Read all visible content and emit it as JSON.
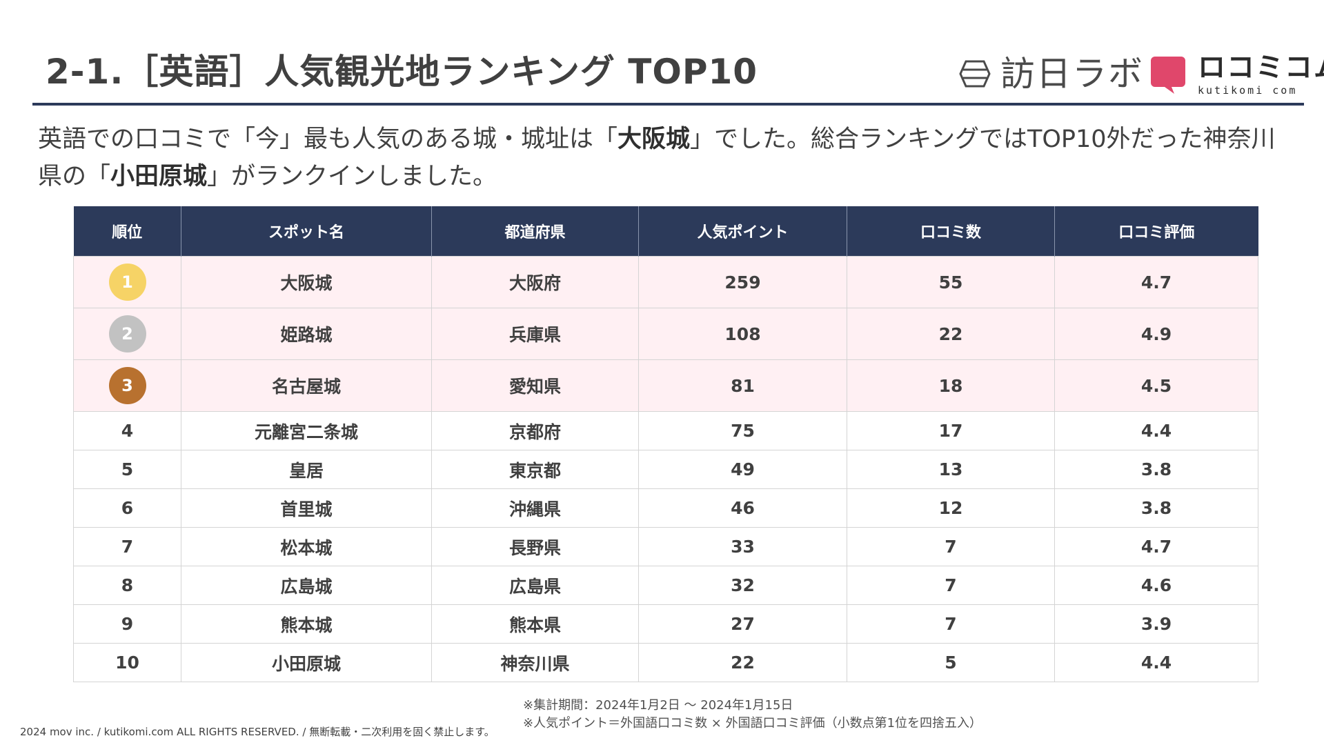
{
  "title": "2-1.［英語］人気観光地ランキング TOP10",
  "logos": {
    "houjitsu": "訪日ラボ",
    "kutikomi_jp": "ロコミコム",
    "kutikomi_en": "kutikomi com",
    "kutikomi_color": "#e0476b"
  },
  "lead": {
    "part1": "英語での口コミで「今」最も人気のある城・城址は「",
    "highlight1": "大阪城",
    "part2": "」でした。総合ランキングではTOP10外だった神奈川県の「",
    "highlight2": "小田原城",
    "part3": "」がランクインしました。"
  },
  "table": {
    "headers": [
      "順位",
      "スポット名",
      "都道府県",
      "人気ポイント",
      "口コミ数",
      "口コミ評価"
    ],
    "medal_colors": [
      "#f6d366",
      "#c2c2c2",
      "#b8712f"
    ],
    "rows": [
      {
        "rank": "1",
        "spot": "大阪城",
        "pref": "大阪府",
        "points": "259",
        "reviews": "55",
        "rating": "4.7"
      },
      {
        "rank": "2",
        "spot": "姫路城",
        "pref": "兵庫県",
        "points": "108",
        "reviews": "22",
        "rating": "4.9"
      },
      {
        "rank": "3",
        "spot": "名古屋城",
        "pref": "愛知県",
        "points": "81",
        "reviews": "18",
        "rating": "4.5"
      },
      {
        "rank": "4",
        "spot": "元離宮二条城",
        "pref": "京都府",
        "points": "75",
        "reviews": "17",
        "rating": "4.4"
      },
      {
        "rank": "5",
        "spot": "皇居",
        "pref": "東京都",
        "points": "49",
        "reviews": "13",
        "rating": "3.8"
      },
      {
        "rank": "6",
        "spot": "首里城",
        "pref": "沖縄県",
        "points": "46",
        "reviews": "12",
        "rating": "3.8"
      },
      {
        "rank": "7",
        "spot": "松本城",
        "pref": "長野県",
        "points": "33",
        "reviews": "7",
        "rating": "4.7"
      },
      {
        "rank": "8",
        "spot": "広島城",
        "pref": "広島県",
        "points": "32",
        "reviews": "7",
        "rating": "4.6"
      },
      {
        "rank": "9",
        "spot": "熊本城",
        "pref": "熊本県",
        "points": "27",
        "reviews": "7",
        "rating": "3.9"
      },
      {
        "rank": "10",
        "spot": "小田原城",
        "pref": "神奈川県",
        "points": "22",
        "reviews": "5",
        "rating": "4.4"
      }
    ]
  },
  "notes": {
    "period": "※集計期間：2024年1月2日 〜 2024年1月15日",
    "formula": "※人気ポイント＝外国語口コミ数 × 外国語口コミ評価（小数点第1位を四捨五入）"
  },
  "copyright": "2024 mov inc. / kutikomi.com ALL RIGHTS RESERVED. / 無断転載・二次利用を固く禁止します。"
}
